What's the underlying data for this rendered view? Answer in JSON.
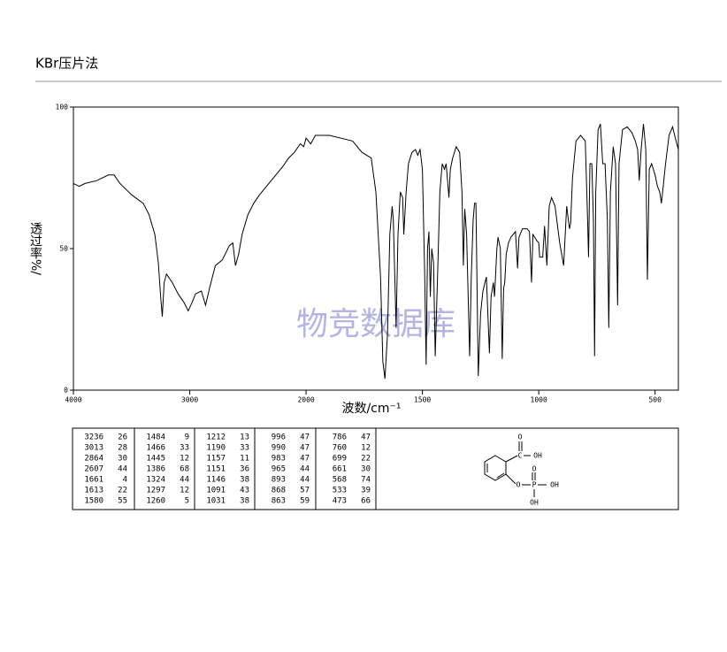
{
  "header": {
    "title": "KBr压片法"
  },
  "chart_data": {
    "type": "line",
    "color": "#000000",
    "xlabel": "波数/cm⁻¹",
    "ylabel": "透过率%/",
    "watermark": "物竞数据库",
    "xlim": [
      4000,
      400
    ],
    "xticks": [
      4000,
      3000,
      2000,
      1500,
      1000,
      500
    ],
    "ylim": [
      0,
      100
    ],
    "yticks": [
      0,
      50,
      100
    ],
    "x": [
      4000,
      3950,
      3900,
      3800,
      3700,
      3650,
      3600,
      3550,
      3500,
      3400,
      3350,
      3300,
      3270,
      3250,
      3236,
      3220,
      3200,
      3150,
      3100,
      3050,
      3013,
      2980,
      2950,
      2900,
      2864,
      2830,
      2780,
      2720,
      2660,
      2630,
      2607,
      2580,
      2550,
      2500,
      2450,
      2400,
      2300,
      2200,
      2150,
      2100,
      2050,
      2020,
      2000,
      1980,
      1960,
      1900,
      1850,
      1800,
      1760,
      1720,
      1700,
      1680,
      1670,
      1661,
      1650,
      1640,
      1630,
      1625,
      1613,
      1605,
      1595,
      1585,
      1580,
      1570,
      1560,
      1545,
      1530,
      1520,
      1510,
      1500,
      1490,
      1484,
      1478,
      1472,
      1466,
      1460,
      1452,
      1445,
      1435,
      1425,
      1415,
      1405,
      1398,
      1386,
      1380,
      1370,
      1355,
      1340,
      1330,
      1324,
      1318,
      1310,
      1297,
      1290,
      1282,
      1276,
      1270,
      1260,
      1250,
      1240,
      1225,
      1212,
      1205,
      1195,
      1190,
      1180,
      1175,
      1165,
      1157,
      1151,
      1146,
      1140,
      1130,
      1120,
      1110,
      1100,
      1091,
      1085,
      1070,
      1050,
      1040,
      1031,
      1025,
      1010,
      1000,
      996,
      990,
      983,
      975,
      965,
      955,
      945,
      930,
      910,
      893,
      880,
      868,
      863,
      855,
      840,
      820,
      800,
      790,
      786,
      780,
      772,
      765,
      760,
      755,
      745,
      735,
      725,
      715,
      705,
      699,
      692,
      680,
      670,
      661,
      655,
      640,
      620,
      600,
      585,
      575,
      568,
      560,
      550,
      540,
      533,
      525,
      515,
      500,
      490,
      480,
      473,
      465,
      455,
      440,
      425,
      410,
      400
    ],
    "values": [
      73,
      72,
      73,
      74,
      76,
      76,
      73,
      71,
      69,
      66,
      62,
      55,
      45,
      33,
      26,
      38,
      41,
      38,
      34,
      31,
      28,
      31,
      34,
      35,
      30,
      36,
      44,
      46,
      51,
      52,
      44,
      48,
      55,
      62,
      66,
      69,
      74,
      79,
      82,
      84,
      87,
      86,
      89,
      87,
      90,
      90,
      89,
      88,
      84,
      82,
      70,
      40,
      10,
      4,
      20,
      55,
      65,
      60,
      22,
      55,
      70,
      68,
      55,
      70,
      80,
      84,
      85,
      83,
      85,
      78,
      40,
      9,
      50,
      56,
      33,
      50,
      45,
      12,
      40,
      70,
      80,
      78,
      80,
      68,
      78,
      82,
      86,
      84,
      70,
      44,
      64,
      55,
      12,
      40,
      60,
      66,
      66,
      5,
      27,
      35,
      40,
      13,
      33,
      38,
      33,
      50,
      54,
      50,
      11,
      36,
      38,
      48,
      52,
      54,
      55,
      56,
      43,
      54,
      57,
      57,
      56,
      38,
      55,
      53,
      52,
      47,
      47,
      47,
      58,
      44,
      65,
      68,
      65,
      52,
      44,
      65,
      57,
      59,
      75,
      88,
      90,
      88,
      60,
      47,
      80,
      80,
      60,
      12,
      70,
      92,
      94,
      80,
      80,
      60,
      22,
      70,
      86,
      80,
      30,
      80,
      92,
      93,
      91,
      88,
      85,
      74,
      85,
      94,
      85,
      39,
      78,
      80,
      76,
      72,
      70,
      66,
      72,
      80,
      90,
      93,
      88,
      85
    ]
  },
  "peak_table": [
    [
      [
        3236,
        26
      ],
      [
        3013,
        28
      ],
      [
        2864,
        30
      ],
      [
        2607,
        44
      ],
      [
        1661,
        4
      ],
      [
        1613,
        22
      ],
      [
        1580,
        55
      ]
    ],
    [
      [
        1484,
        9
      ],
      [
        1466,
        33
      ],
      [
        1445,
        12
      ],
      [
        1386,
        68
      ],
      [
        1324,
        44
      ],
      [
        1297,
        12
      ],
      [
        1260,
        5
      ]
    ],
    [
      [
        1212,
        13
      ],
      [
        1190,
        33
      ],
      [
        1157,
        11
      ],
      [
        1151,
        36
      ],
      [
        1146,
        38
      ],
      [
        1091,
        43
      ],
      [
        1031,
        38
      ]
    ],
    [
      [
        996,
        47
      ],
      [
        990,
        47
      ],
      [
        983,
        47
      ],
      [
        965,
        44
      ],
      [
        893,
        44
      ],
      [
        868,
        57
      ],
      [
        863,
        59
      ]
    ],
    [
      [
        786,
        47
      ],
      [
        760,
        12
      ],
      [
        699,
        22
      ],
      [
        661,
        30
      ],
      [
        568,
        74
      ],
      [
        533,
        39
      ],
      [
        473,
        66
      ]
    ]
  ],
  "structure_labels": [
    "O",
    "C",
    "OH",
    "O",
    "P",
    "OH",
    "O",
    "OH"
  ]
}
